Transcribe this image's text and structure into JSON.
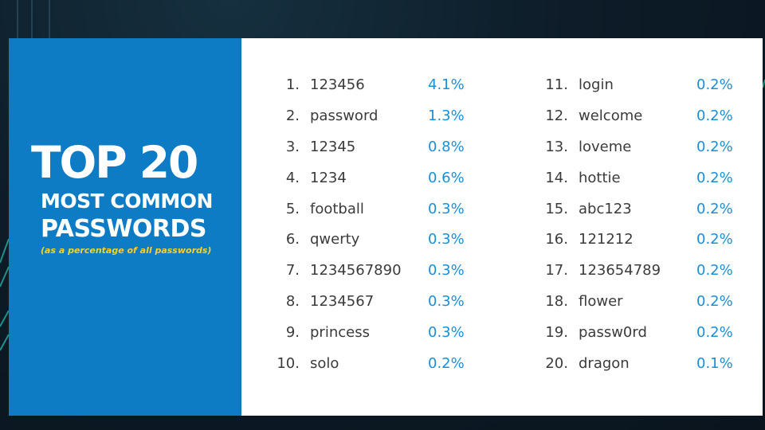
{
  "title": {
    "main": "TOP 20",
    "line1": "MOST COMMON",
    "line2": "PASSWORDS",
    "note": "(as a percentage of all passwords)"
  },
  "colors": {
    "panel": "#0d7cc4",
    "percent": "#1a8fd6",
    "note": "#f5d12a",
    "text": "#3b3b3b"
  },
  "left_list": [
    {
      "rank": "1.",
      "password": "123456",
      "percent": "4.1%"
    },
    {
      "rank": "2.",
      "password": "password",
      "percent": "1.3%"
    },
    {
      "rank": "3.",
      "password": "12345",
      "percent": "0.8%"
    },
    {
      "rank": "4.",
      "password": "1234",
      "percent": "0.6%"
    },
    {
      "rank": "5.",
      "password": "football",
      "percent": "0.3%"
    },
    {
      "rank": "6.",
      "password": "qwerty",
      "percent": "0.3%"
    },
    {
      "rank": "7.",
      "password": "1234567890",
      "percent": "0.3%"
    },
    {
      "rank": "8.",
      "password": "1234567",
      "percent": "0.3%"
    },
    {
      "rank": "9.",
      "password": "princess",
      "percent": "0.3%"
    },
    {
      "rank": "10.",
      "password": "solo",
      "percent": "0.2%"
    }
  ],
  "right_list": [
    {
      "rank": "11.",
      "password": "login",
      "percent": "0.2%"
    },
    {
      "rank": "12.",
      "password": "welcome",
      "percent": "0.2%"
    },
    {
      "rank": "13.",
      "password": "loveme",
      "percent": "0.2%"
    },
    {
      "rank": "14.",
      "password": "hottie",
      "percent": "0.2%"
    },
    {
      "rank": "15.",
      "password": "abc123",
      "percent": "0.2%"
    },
    {
      "rank": "16.",
      "password": "121212",
      "percent": "0.2%"
    },
    {
      "rank": "17.",
      "password": "123654789",
      "percent": "0.2%"
    },
    {
      "rank": "18.",
      "password": "flower",
      "percent": "0.2%"
    },
    {
      "rank": "19.",
      "password": "passw0rd",
      "percent": "0.2%"
    },
    {
      "rank": "20.",
      "password": "dragon",
      "percent": "0.1%"
    }
  ]
}
